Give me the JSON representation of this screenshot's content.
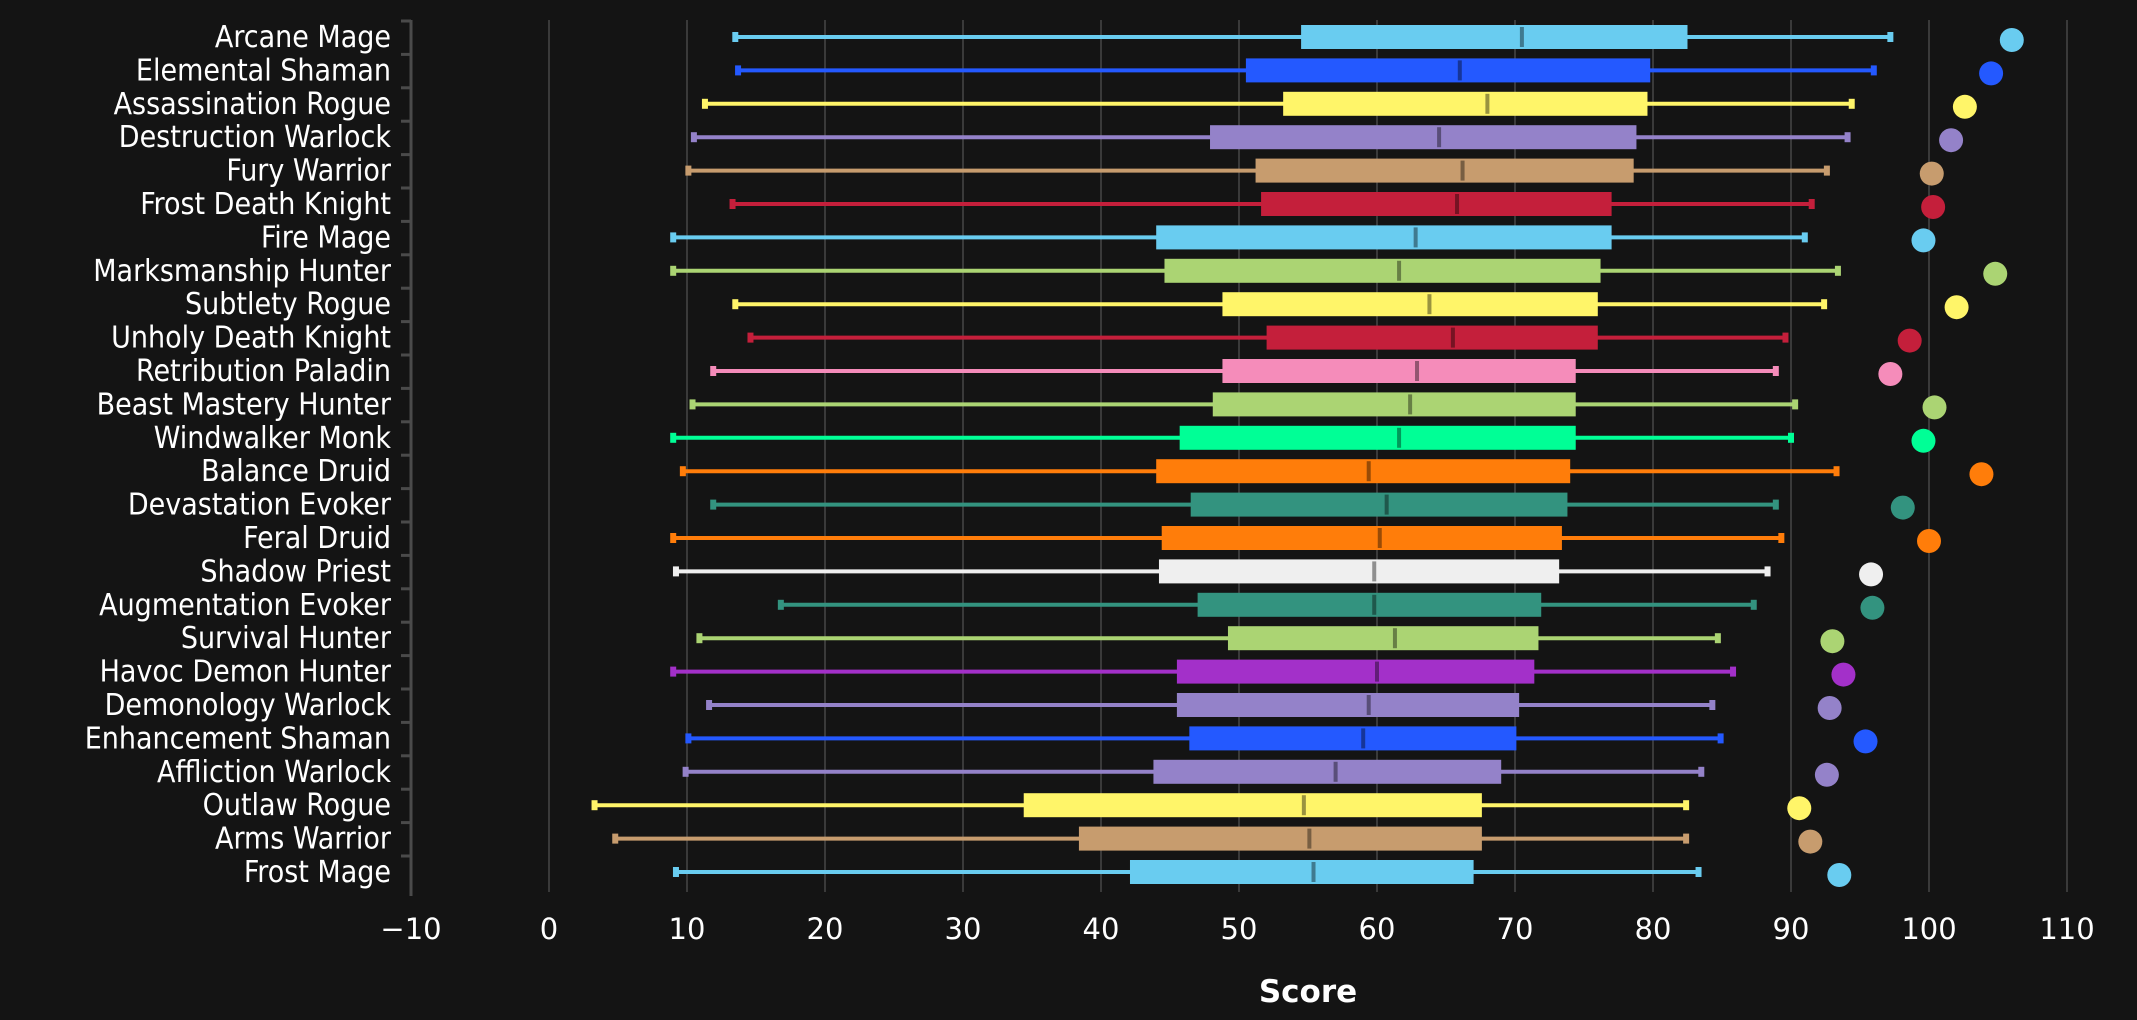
{
  "chart_data": {
    "type": "boxplot",
    "title": "",
    "xlabel": "Score",
    "ylabel": "",
    "xlim": [
      -10,
      113
    ],
    "xticks": [
      -10,
      0,
      10,
      20,
      30,
      40,
      50,
      60,
      70,
      80,
      90,
      100,
      110
    ],
    "grid": true,
    "background": "#141414",
    "categories": [
      {
        "name": "Arcane Mage",
        "color": "#69CCF0",
        "whisker_low": 13.5,
        "q1": 54.5,
        "median": 70.5,
        "q3": 82.5,
        "whisker_high": 97.2,
        "max": 106.0
      },
      {
        "name": "Elemental Shaman",
        "color": "#2459FF",
        "whisker_low": 13.7,
        "q1": 50.5,
        "median": 66.0,
        "q3": 79.8,
        "whisker_high": 96.0,
        "max": 104.5
      },
      {
        "name": "Assassination Rogue",
        "color": "#FFF569",
        "whisker_low": 11.3,
        "q1": 53.2,
        "median": 68.0,
        "q3": 79.6,
        "whisker_high": 94.4,
        "max": 102.6
      },
      {
        "name": "Destruction Warlock",
        "color": "#9482C9",
        "whisker_low": 10.5,
        "q1": 47.9,
        "median": 64.5,
        "q3": 78.8,
        "whisker_high": 94.1,
        "max": 101.6
      },
      {
        "name": "Fury Warrior",
        "color": "#C79C6E",
        "whisker_low": 10.1,
        "q1": 51.2,
        "median": 66.2,
        "q3": 78.6,
        "whisker_high": 92.6,
        "max": 100.2
      },
      {
        "name": "Frost Death Knight",
        "color": "#C41F3B",
        "whisker_low": 13.3,
        "q1": 51.6,
        "median": 65.8,
        "q3": 77.0,
        "whisker_high": 91.5,
        "max": 100.3
      },
      {
        "name": "Fire Mage",
        "color": "#69CCF0",
        "whisker_low": 9.0,
        "q1": 44.0,
        "median": 62.8,
        "q3": 77.0,
        "whisker_high": 91.0,
        "max": 99.6
      },
      {
        "name": "Marksmanship Hunter",
        "color": "#ABD473",
        "whisker_low": 9.0,
        "q1": 44.6,
        "median": 61.6,
        "q3": 76.2,
        "whisker_high": 93.4,
        "max": 104.8
      },
      {
        "name": "Subtlety Rogue",
        "color": "#FFF569",
        "whisker_low": 13.5,
        "q1": 48.8,
        "median": 63.8,
        "q3": 76.0,
        "whisker_high": 92.4,
        "max": 102.0
      },
      {
        "name": "Unholy Death Knight",
        "color": "#C41F3B",
        "whisker_low": 14.6,
        "q1": 52.0,
        "median": 65.5,
        "q3": 76.0,
        "whisker_high": 89.6,
        "max": 98.6
      },
      {
        "name": "Retribution Paladin",
        "color": "#F58CBA",
        "whisker_low": 11.9,
        "q1": 48.8,
        "median": 62.9,
        "q3": 74.4,
        "whisker_high": 88.9,
        "max": 97.2
      },
      {
        "name": "Beast Mastery Hunter",
        "color": "#ABD473",
        "whisker_low": 10.4,
        "q1": 48.1,
        "median": 62.4,
        "q3": 74.4,
        "whisker_high": 90.3,
        "max": 100.4
      },
      {
        "name": "Windwalker Monk",
        "color": "#00FF96",
        "whisker_low": 9.0,
        "q1": 45.7,
        "median": 61.6,
        "q3": 74.4,
        "whisker_high": 90.0,
        "max": 99.6
      },
      {
        "name": "Balance Druid",
        "color": "#FF7D0A",
        "whisker_low": 9.7,
        "q1": 44.0,
        "median": 59.4,
        "q3": 74.0,
        "whisker_high": 93.3,
        "max": 103.8
      },
      {
        "name": "Devastation Evoker",
        "color": "#33937F",
        "whisker_low": 11.9,
        "q1": 46.5,
        "median": 60.7,
        "q3": 73.8,
        "whisker_high": 88.9,
        "max": 98.1
      },
      {
        "name": "Feral Druid",
        "color": "#FF7D0A",
        "whisker_low": 9.0,
        "q1": 44.4,
        "median": 60.2,
        "q3": 73.4,
        "whisker_high": 89.3,
        "max": 100.0
      },
      {
        "name": "Shadow Priest",
        "color": "#EFEFEF",
        "whisker_low": 9.2,
        "q1": 44.2,
        "median": 59.8,
        "q3": 73.2,
        "whisker_high": 88.3,
        "max": 95.8
      },
      {
        "name": "Augmentation Evoker",
        "color": "#33937F",
        "whisker_low": 16.8,
        "q1": 47.0,
        "median": 59.8,
        "q3": 71.9,
        "whisker_high": 87.3,
        "max": 95.9
      },
      {
        "name": "Survival Hunter",
        "color": "#ABD473",
        "whisker_low": 10.9,
        "q1": 49.2,
        "median": 61.3,
        "q3": 71.7,
        "whisker_high": 84.7,
        "max": 93.0
      },
      {
        "name": "Havoc Demon Hunter",
        "color": "#A330C9",
        "whisker_low": 9.0,
        "q1": 45.5,
        "median": 60.0,
        "q3": 71.4,
        "whisker_high": 85.8,
        "max": 93.8
      },
      {
        "name": "Demonology Warlock",
        "color": "#9482C9",
        "whisker_low": 11.6,
        "q1": 45.5,
        "median": 59.4,
        "q3": 70.3,
        "whisker_high": 84.3,
        "max": 92.8
      },
      {
        "name": "Enhancement Shaman",
        "color": "#2459FF",
        "whisker_low": 10.1,
        "q1": 46.4,
        "median": 59.0,
        "q3": 70.1,
        "whisker_high": 84.9,
        "max": 95.4
      },
      {
        "name": "Affliction Warlock",
        "color": "#9482C9",
        "whisker_low": 9.9,
        "q1": 43.8,
        "median": 57.0,
        "q3": 69.0,
        "whisker_high": 83.5,
        "max": 92.6
      },
      {
        "name": "Outlaw Rogue",
        "color": "#FFF569",
        "whisker_low": 3.3,
        "q1": 34.4,
        "median": 54.7,
        "q3": 67.6,
        "whisker_high": 82.4,
        "max": 90.6
      },
      {
        "name": "Arms Warrior",
        "color": "#C79C6E",
        "whisker_low": 4.8,
        "q1": 38.4,
        "median": 55.1,
        "q3": 67.6,
        "whisker_high": 82.4,
        "max": 91.4
      },
      {
        "name": "Frost Mage",
        "color": "#69CCF0",
        "whisker_low": 9.2,
        "q1": 42.1,
        "median": 55.4,
        "q3": 67.0,
        "whisker_high": 83.3,
        "max": 93.5
      }
    ]
  }
}
